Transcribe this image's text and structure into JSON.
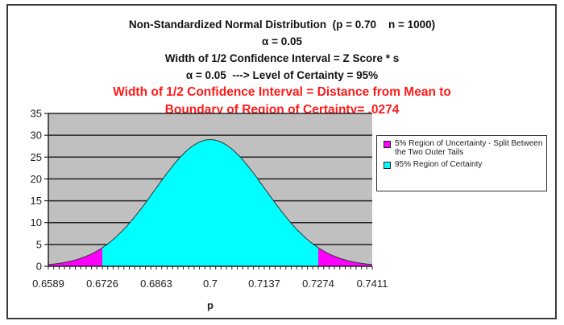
{
  "titles": {
    "line1": "Non-Standardized Normal Distribution  (p = 0.70    n = 1000)",
    "line2": "α = 0.05",
    "line3": "Width of 1/2 Confidence Interval = Z Score * s",
    "line4": "α = 0.05  ---> Level of Certainty = 95%",
    "red1": "Width of 1/2 Confidence Interval = Distance from Mean to",
    "red2": "Boundary of Region of Certainty= .0274"
  },
  "legend": {
    "items": [
      {
        "label": "5% Region of Uncertainty - Split Between the Two Outer Tails",
        "color": "#ff00ff"
      },
      {
        "label": "95% Region of Certainty",
        "color": "#00ffff"
      }
    ]
  },
  "colors": {
    "plot_bg": "#c0c0c0",
    "tail": "#ff00ff",
    "center": "#00ffff",
    "title_red": "#ff1a1a"
  },
  "chart_data": {
    "type": "area",
    "title": "Non-Standardized Normal Distribution (p = 0.70 n = 1000)",
    "subtitle": [
      "α = 0.05",
      "Width of 1/2 Confidence Interval = Z Score * s",
      "α = 0.05 ---> Level of Certainty = 95%",
      "Width of 1/2 Confidence Interval = Distance from Mean to Boundary of Region of Certainty= .0274"
    ],
    "xlabel": "p",
    "ylabel": "",
    "x_ticks": [
      "0.6589",
      "0.6726",
      "0.6863",
      "0.7",
      "0.7137",
      "0.7274",
      "0.7411"
    ],
    "y_ticks": [
      0,
      5,
      10,
      15,
      20,
      25,
      30,
      35
    ],
    "xlim": [
      0.6589,
      0.7411
    ],
    "ylim": [
      0,
      35
    ],
    "grid": true,
    "legend_position": "right",
    "mean": 0.7,
    "peak_density": 29,
    "half_width": 0.0274,
    "boundaries": [
      0.6726,
      0.7274
    ],
    "series": [
      {
        "name": "5% Region of Uncertainty - Split Between the Two Outer Tails",
        "x_range": [
          [
            0.6589,
            0.6726
          ],
          [
            0.7274,
            0.7411
          ]
        ],
        "color": "#ff00ff"
      },
      {
        "name": "95% Region of Certainty",
        "x_range": [
          0.6726,
          0.7274
        ],
        "color": "#00ffff"
      }
    ],
    "sample_points": {
      "x": [
        0.6589,
        0.6658,
        0.6726,
        0.6795,
        0.6863,
        0.6932,
        0.7,
        0.7069,
        0.7137,
        0.7206,
        0.7274,
        0.7343,
        0.7411
      ],
      "y": [
        0.5,
        1.3,
        3.4,
        7.1,
        13.5,
        21.6,
        29,
        21.6,
        13.5,
        7.1,
        3.4,
        1.3,
        0.5
      ]
    }
  }
}
